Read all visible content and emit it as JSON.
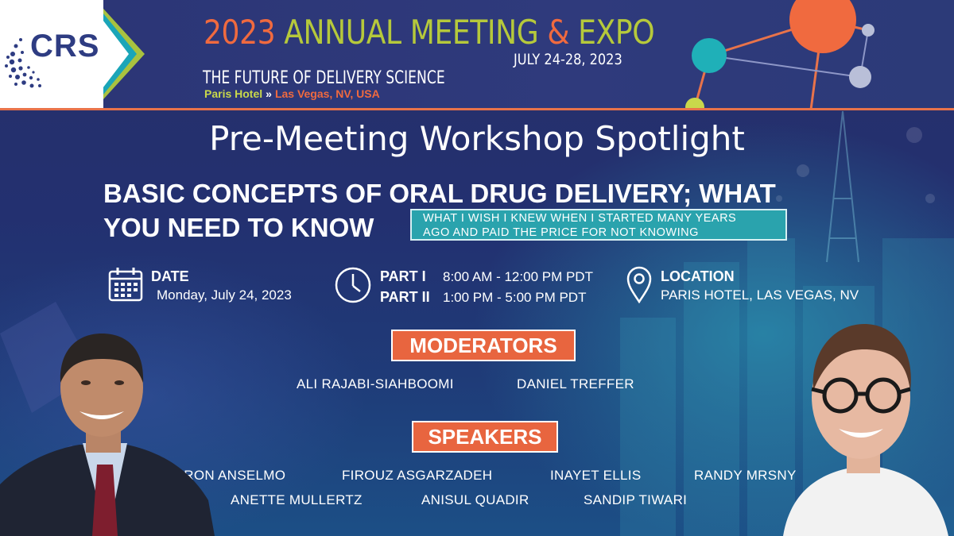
{
  "header": {
    "logo_text": "CRS",
    "meeting_year": "2023",
    "meeting_title": "ANNUAL MEETING",
    "meeting_amp": "&",
    "meeting_expo": "EXPO",
    "meeting_dates": "JULY 24-28, 2023",
    "tagline": "THE FUTURE OF DELIVERY SCIENCE",
    "venue_hotel": "Paris Hotel",
    "venue_arrow": "»",
    "venue_city": "Las Vegas, NV, USA"
  },
  "main": {
    "heading": "Pre-Meeting Workshop Spotlight",
    "course_title_line1": "BASIC CONCEPTS OF ORAL DRUG DELIVERY; WHAT",
    "course_title_line2": "YOU NEED TO KNOW",
    "subtitle_line1": "WHAT I WISH I KNEW WHEN I STARTED MANY YEARS",
    "subtitle_line2": "AGO AND PAID THE PRICE FOR NOT KNOWING"
  },
  "info": {
    "date_label": "DATE",
    "date_value": "Monday, July 24, 2023",
    "part1_label": "PART I",
    "part1_time": "8:00 AM - 12:00 PM PDT",
    "part2_label": "PART II",
    "part2_time": "1:00 PM - 5:00 PM PDT",
    "location_label": "LOCATION",
    "location_value": "PARIS HOTEL, LAS VEGAS, NV"
  },
  "moderators": {
    "label": "MODERATORS",
    "names": [
      "ALI RAJABI-SIAHBOOMI",
      "DANIEL TREFFER"
    ]
  },
  "speakers": {
    "label": "SPEAKERS",
    "names": [
      "AARON ANSELMO",
      "FIROUZ ASGARZADEH",
      "INAYET ELLIS",
      "RANDY MRSNY",
      "ANETTE MULLERTZ",
      "ANISUL QUADIR",
      "SANDIP TIWARI"
    ]
  },
  "icons": {
    "date": "calendar-icon",
    "time": "clock-icon",
    "location": "map-pin-icon"
  },
  "colors": {
    "accent_orange": "#e8653f",
    "accent_green": "#b6c93b",
    "accent_teal": "#2aa3ad",
    "brand_navy": "#2e3c82"
  }
}
